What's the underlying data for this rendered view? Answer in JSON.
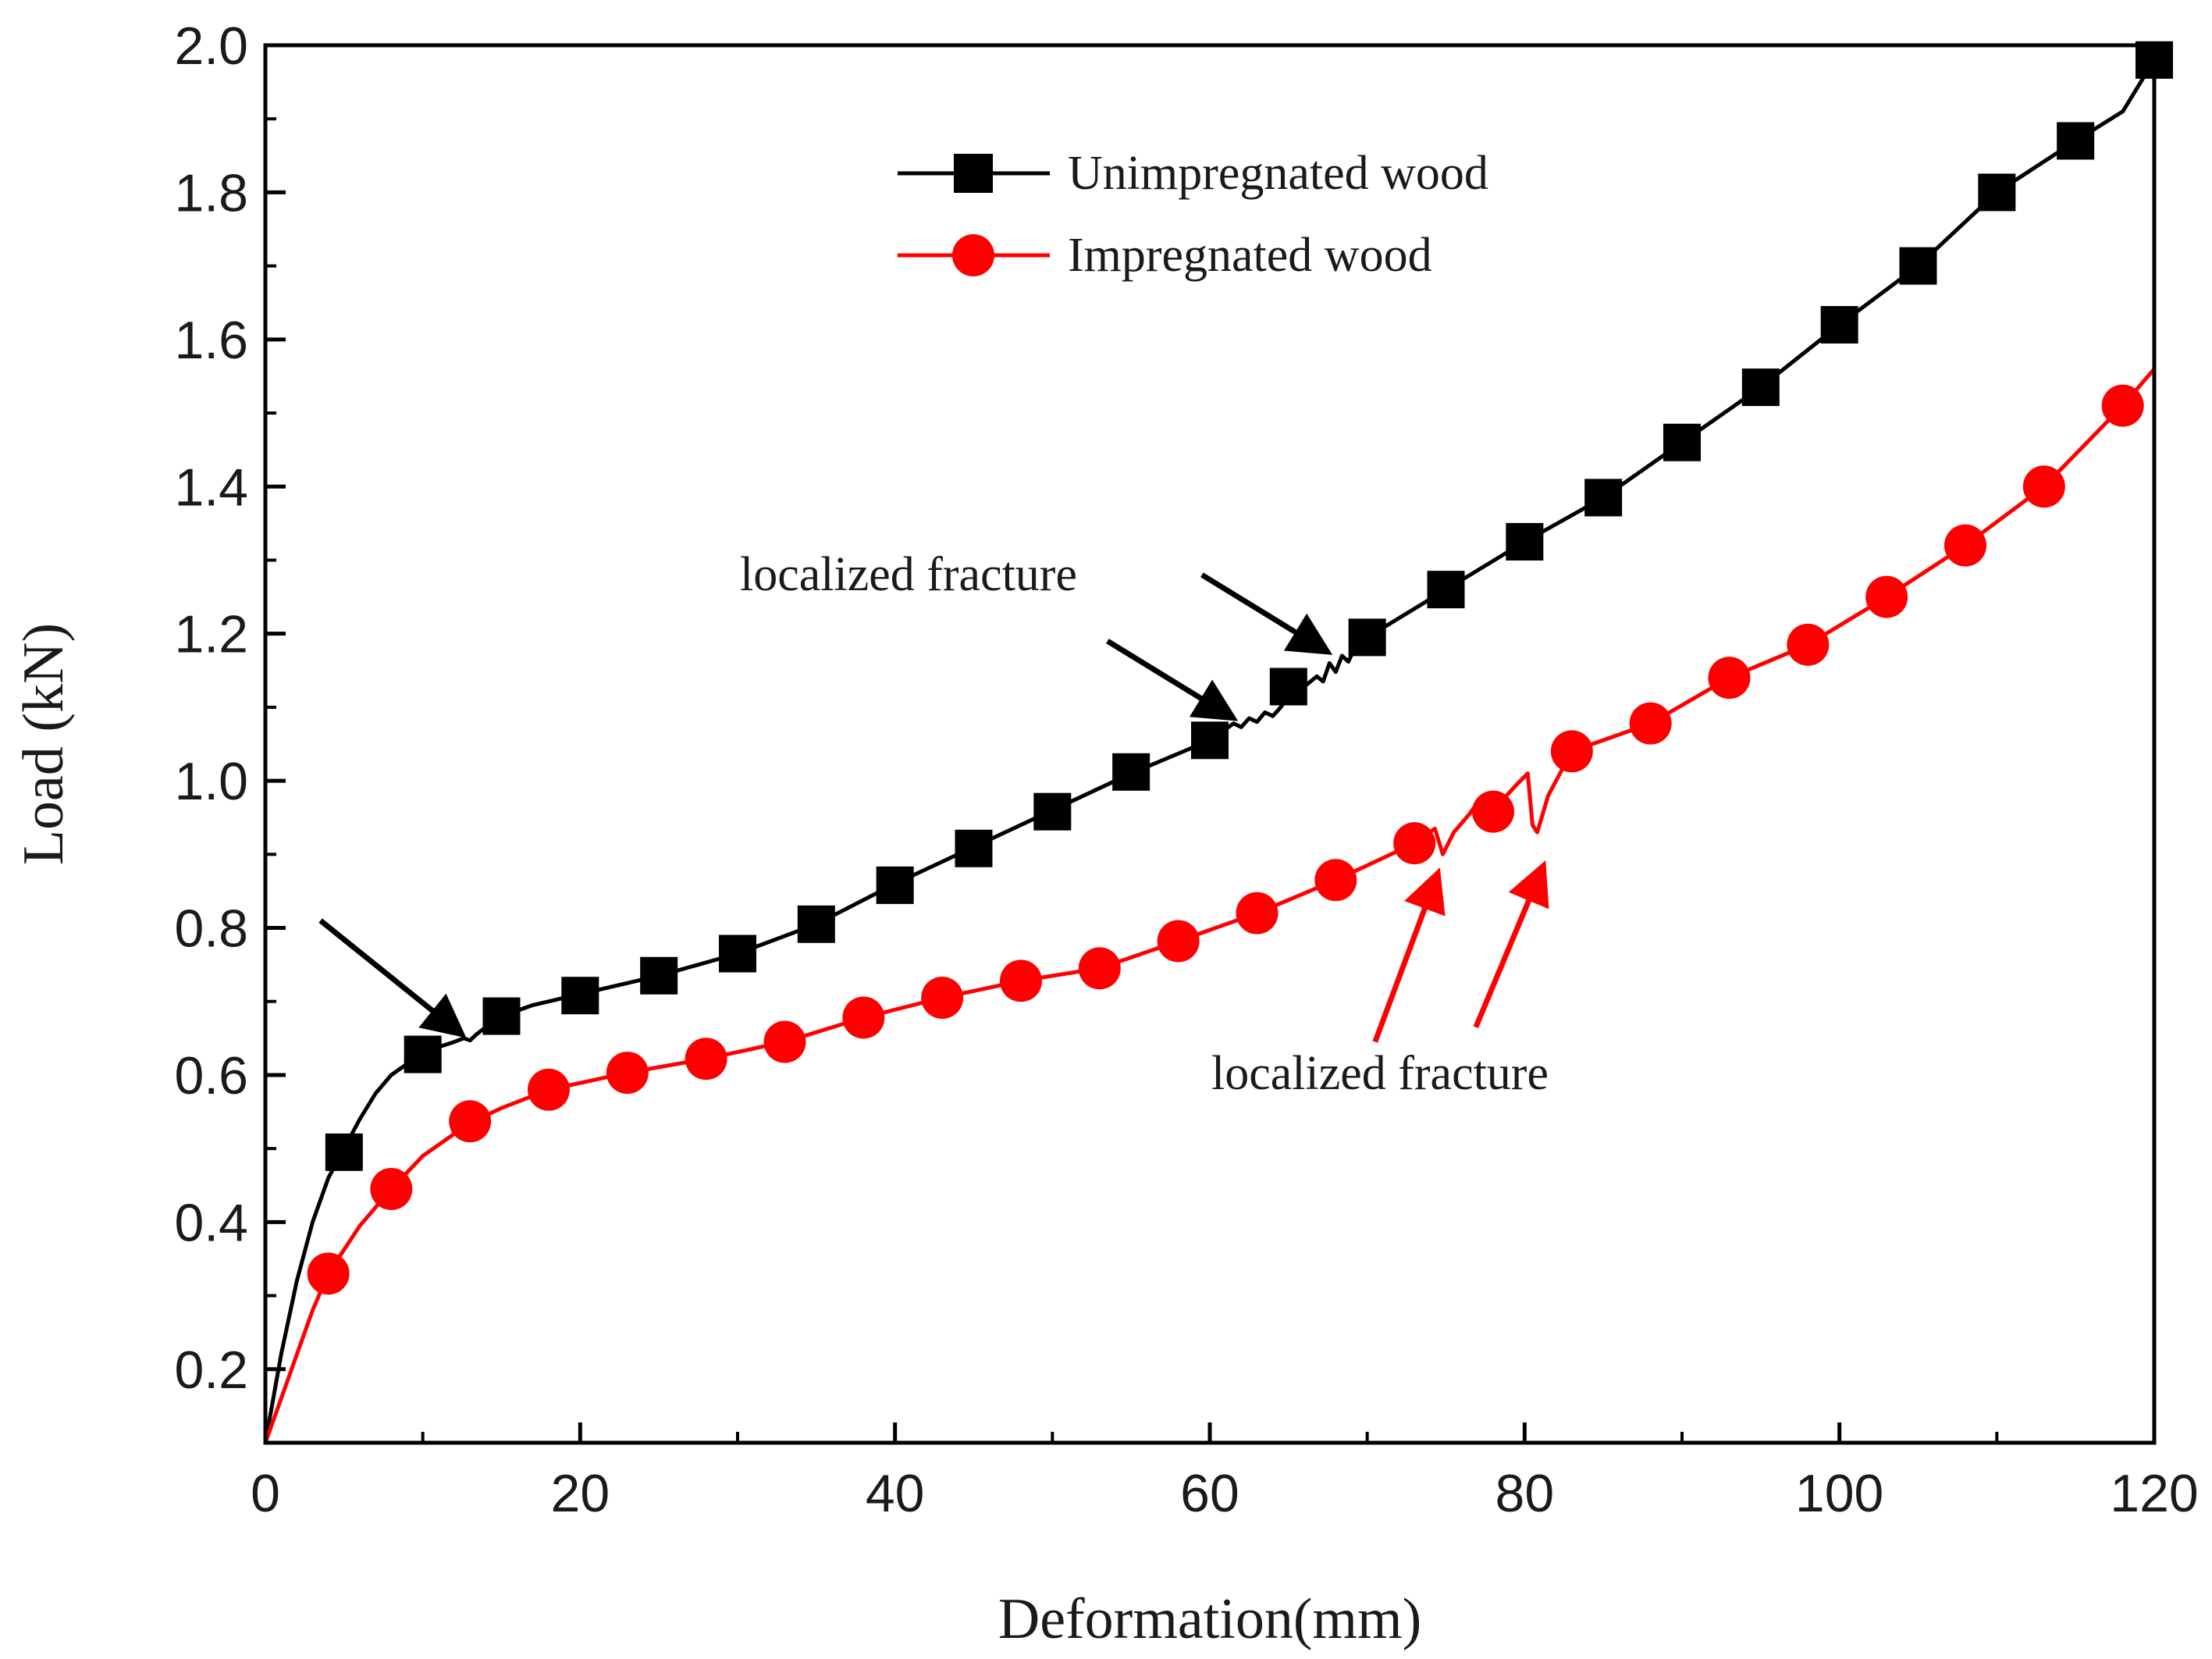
{
  "chart_data": {
    "type": "line",
    "title": "",
    "xlabel": "Deformation(mm)",
    "ylabel": "Load (kN)",
    "xlim": [
      0,
      120
    ],
    "ylim": [
      0.1,
      2.0
    ],
    "grid": false,
    "legend_position": "top-center",
    "x_ticks": [
      {
        "value": 0,
        "label": "0"
      },
      {
        "value": 20,
        "label": "20"
      },
      {
        "value": 40,
        "label": "40"
      },
      {
        "value": 60,
        "label": "60"
      },
      {
        "value": 80,
        "label": "80"
      },
      {
        "value": 100,
        "label": "100"
      },
      {
        "value": 120,
        "label": "120"
      }
    ],
    "y_ticks": [
      {
        "value": 0.2,
        "label": "0.2"
      },
      {
        "value": 0.4,
        "label": "0.4"
      },
      {
        "value": 0.6,
        "label": "0.6"
      },
      {
        "value": 0.8,
        "label": "0.8"
      },
      {
        "value": 1.0,
        "label": "1.0"
      },
      {
        "value": 1.2,
        "label": "1.2"
      },
      {
        "value": 1.4,
        "label": "1.4"
      },
      {
        "value": 1.6,
        "label": "1.6"
      },
      {
        "value": 1.8,
        "label": "1.8"
      },
      {
        "value": 2.0,
        "label": "2.0"
      }
    ],
    "series": [
      {
        "name": "Unimpregnated wood",
        "color": "#000000",
        "marker": "square",
        "curve": [
          [
            0,
            0.1
          ],
          [
            1,
            0.22
          ],
          [
            2,
            0.32
          ],
          [
            3,
            0.4
          ],
          [
            4,
            0.46
          ],
          [
            5,
            0.5
          ],
          [
            6,
            0.54
          ],
          [
            7,
            0.575
          ],
          [
            8,
            0.6
          ],
          [
            9,
            0.615
          ],
          [
            10,
            0.63
          ],
          [
            11,
            0.638
          ],
          [
            12,
            0.645
          ],
          [
            12.6,
            0.65
          ],
          [
            13.0,
            0.647
          ],
          [
            13.4,
            0.655
          ],
          [
            14,
            0.665
          ],
          [
            15,
            0.68
          ],
          [
            17,
            0.695
          ],
          [
            20,
            0.71
          ],
          [
            25,
            0.735
          ],
          [
            30,
            0.765
          ],
          [
            35,
            0.805
          ],
          [
            40,
            0.86
          ],
          [
            45,
            0.91
          ],
          [
            50,
            0.96
          ],
          [
            55,
            1.01
          ],
          [
            60,
            1.055
          ],
          [
            61,
            1.07
          ],
          [
            61.5,
            1.078
          ],
          [
            62,
            1.073
          ],
          [
            62.5,
            1.085
          ],
          [
            63,
            1.08
          ],
          [
            63.5,
            1.093
          ],
          [
            64,
            1.088
          ],
          [
            64.5,
            1.1
          ],
          [
            65,
            1.115
          ],
          [
            66,
            1.128
          ],
          [
            66.8,
            1.142
          ],
          [
            67.2,
            1.135
          ],
          [
            67.6,
            1.16
          ],
          [
            68.0,
            1.148
          ],
          [
            68.4,
            1.17
          ],
          [
            68.8,
            1.162
          ],
          [
            69.2,
            1.18
          ],
          [
            70,
            1.195
          ],
          [
            75,
            1.26
          ],
          [
            80,
            1.325
          ],
          [
            85,
            1.385
          ],
          [
            90,
            1.46
          ],
          [
            95,
            1.535
          ],
          [
            100,
            1.62
          ],
          [
            105,
            1.7
          ],
          [
            110,
            1.8
          ],
          [
            115,
            1.87
          ],
          [
            118,
            1.91
          ],
          [
            120,
            1.98
          ]
        ],
        "markers": [
          [
            5,
            0.495
          ],
          [
            10,
            0.628
          ],
          [
            15,
            0.68
          ],
          [
            20,
            0.708
          ],
          [
            25,
            0.735
          ],
          [
            30,
            0.765
          ],
          [
            35,
            0.805
          ],
          [
            40,
            0.858
          ],
          [
            45,
            0.908
          ],
          [
            50,
            0.958
          ],
          [
            55,
            1.012
          ],
          [
            60,
            1.055
          ],
          [
            65,
            1.128
          ],
          [
            70,
            1.195
          ],
          [
            75,
            1.26
          ],
          [
            80,
            1.325
          ],
          [
            85,
            1.385
          ],
          [
            90,
            1.46
          ],
          [
            95,
            1.535
          ],
          [
            100,
            1.62
          ],
          [
            105,
            1.7
          ],
          [
            110,
            1.8
          ],
          [
            115,
            1.87
          ],
          [
            120,
            1.98
          ]
        ]
      },
      {
        "name": "Impregnated wood",
        "color": "#ff0000",
        "marker": "circle",
        "curve": [
          [
            0,
            0.1
          ],
          [
            1,
            0.16
          ],
          [
            2,
            0.22
          ],
          [
            3,
            0.28
          ],
          [
            4,
            0.33
          ],
          [
            6,
            0.395
          ],
          [
            8,
            0.445
          ],
          [
            10,
            0.49
          ],
          [
            13,
            0.535
          ],
          [
            15,
            0.555
          ],
          [
            18,
            0.58
          ],
          [
            23,
            0.603
          ],
          [
            28,
            0.622
          ],
          [
            33,
            0.645
          ],
          [
            38,
            0.678
          ],
          [
            43,
            0.705
          ],
          [
            48,
            0.728
          ],
          [
            53,
            0.745
          ],
          [
            58,
            0.782
          ],
          [
            63,
            0.82
          ],
          [
            68,
            0.865
          ],
          [
            73,
            0.915
          ],
          [
            74.3,
            0.935
          ],
          [
            74.8,
            0.9
          ],
          [
            75.5,
            0.93
          ],
          [
            76.5,
            0.955
          ],
          [
            77,
            0.97
          ],
          [
            77.4,
            0.94
          ],
          [
            77.8,
            0.96
          ],
          [
            78,
            0.96
          ],
          [
            79.5,
            0.995
          ],
          [
            80.2,
            1.01
          ],
          [
            80.5,
            0.94
          ],
          [
            80.8,
            0.93
          ],
          [
            81.5,
            0.98
          ],
          [
            83,
            1.04
          ],
          [
            88,
            1.078
          ],
          [
            93,
            1.14
          ],
          [
            98,
            1.185
          ],
          [
            103,
            1.25
          ],
          [
            108,
            1.32
          ],
          [
            113,
            1.4
          ],
          [
            118,
            1.51
          ],
          [
            120,
            1.56
          ]
        ],
        "markers": [
          [
            4,
            0.33
          ],
          [
            8,
            0.445
          ],
          [
            13,
            0.537
          ],
          [
            18,
            0.58
          ],
          [
            23,
            0.603
          ],
          [
            28,
            0.622
          ],
          [
            33,
            0.645
          ],
          [
            38,
            0.678
          ],
          [
            43,
            0.705
          ],
          [
            48,
            0.728
          ],
          [
            53,
            0.745
          ],
          [
            58,
            0.782
          ],
          [
            63,
            0.82
          ],
          [
            68,
            0.865
          ],
          [
            73,
            0.915
          ],
          [
            78,
            0.958
          ],
          [
            83,
            1.04
          ],
          [
            88,
            1.078
          ],
          [
            93,
            1.14
          ],
          [
            98,
            1.185
          ],
          [
            103,
            1.25
          ],
          [
            108,
            1.32
          ],
          [
            113,
            1.4
          ],
          [
            118,
            1.51
          ]
        ]
      }
    ],
    "annotations": [
      {
        "id": "black",
        "text": "localized fracture",
        "color": "#000000",
        "arrows": [
          {
            "from": [
              3.5,
              0.81
            ],
            "to": [
              12.5,
              0.655
            ]
          },
          {
            "from": [
              53.5,
              1.19
            ],
            "to": [
              61.5,
              1.085
            ]
          },
          {
            "from": [
              59.5,
              1.28
            ],
            "to": [
              67.5,
              1.175
            ]
          }
        ]
      },
      {
        "id": "red",
        "text": "localized fracture",
        "color": "#ff0000",
        "arrows": [
          {
            "from": [
              70.5,
              0.645
            ],
            "to": [
              74.5,
              0.875
            ]
          },
          {
            "from": [
              76.9,
              0.665
            ],
            "to": [
              81.2,
              0.885
            ]
          }
        ]
      }
    ]
  }
}
